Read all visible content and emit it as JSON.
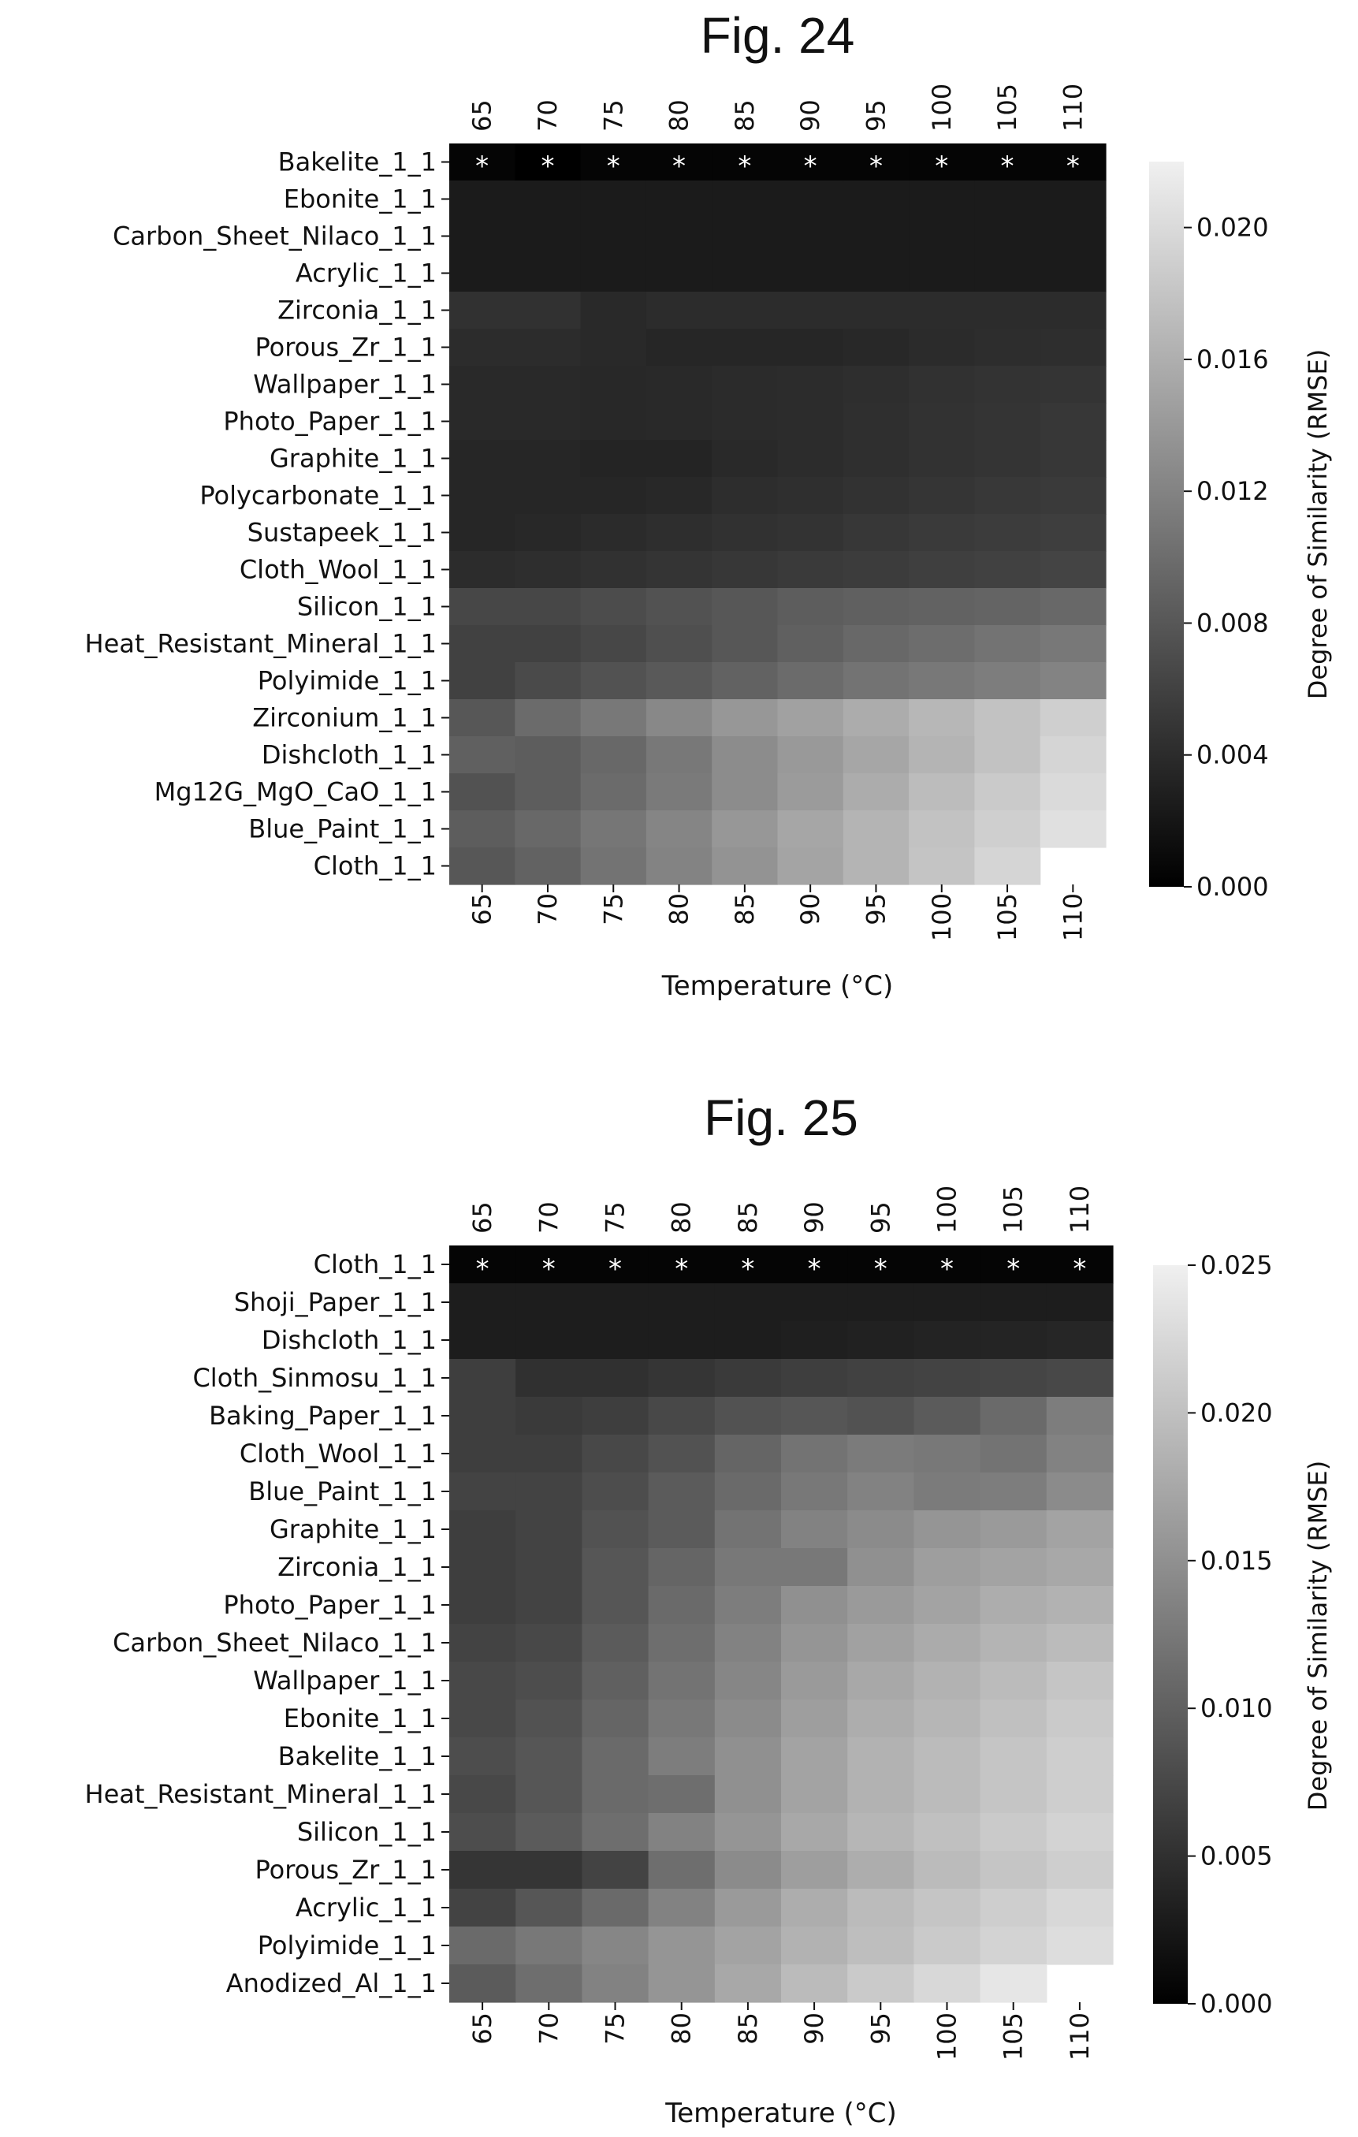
{
  "chart_data": [
    {
      "type": "heatmap",
      "title": "Fig. 24",
      "xlabel": "Temperature (°C)",
      "cbar_label": "Degree of Similarity (RMSE)",
      "cbar_ticks": [
        "0.000",
        "0.004",
        "0.008",
        "0.012",
        "0.016",
        "0.020"
      ],
      "vmin": 0.0,
      "vmax": 0.022,
      "colormap": "gray",
      "x": [
        "65",
        "70",
        "75",
        "80",
        "85",
        "90",
        "95",
        "100",
        "105",
        "110"
      ],
      "y": [
        "Bakelite_1_1",
        "Ebonite_1_1",
        "Carbon_Sheet_Nilaco_1_1",
        "Acrylic_1_1",
        "Zirconia_1_1",
        "Porous_Zr_1_1",
        "Wallpaper_1_1",
        "Photo_Paper_1_1",
        "Graphite_1_1",
        "Polycarbonate_1_1",
        "Sustapeek_1_1",
        "Cloth_Wool_1_1",
        "Silicon_1_1",
        "Heat_Resistant_Mineral_1_1",
        "Polyimide_1_1",
        "Zirconium_1_1",
        "Dishcloth_1_1",
        "Mg12G_MgO_CaO_1_1",
        "Blue_Paint_1_1",
        "Cloth_1_1"
      ],
      "marker": "*",
      "marked_row": 0,
      "values": [
        [
          0.0005,
          0.0,
          0.0005,
          0.0005,
          0.0005,
          0.0005,
          0.0005,
          0.0005,
          0.0005,
          0.0005
        ],
        [
          0.0025,
          0.0025,
          0.0025,
          0.0025,
          0.0025,
          0.0025,
          0.0025,
          0.0025,
          0.0025,
          0.0025
        ],
        [
          0.0025,
          0.0025,
          0.0025,
          0.0025,
          0.0025,
          0.0025,
          0.0025,
          0.0025,
          0.0025,
          0.0025
        ],
        [
          0.0025,
          0.0025,
          0.0025,
          0.0025,
          0.0025,
          0.0025,
          0.0025,
          0.0025,
          0.0025,
          0.0025
        ],
        [
          0.0045,
          0.0045,
          0.0038,
          0.004,
          0.004,
          0.004,
          0.004,
          0.004,
          0.004,
          0.004
        ],
        [
          0.004,
          0.004,
          0.0038,
          0.0035,
          0.0035,
          0.0035,
          0.0037,
          0.0039,
          0.0041,
          0.0042
        ],
        [
          0.0038,
          0.0038,
          0.0037,
          0.0038,
          0.0039,
          0.004,
          0.0042,
          0.0045,
          0.0047,
          0.0048
        ],
        [
          0.0038,
          0.0038,
          0.0037,
          0.0038,
          0.0039,
          0.004,
          0.0043,
          0.0046,
          0.0048,
          0.005
        ],
        [
          0.0035,
          0.0035,
          0.0033,
          0.0033,
          0.0038,
          0.004,
          0.0043,
          0.0046,
          0.0048,
          0.005
        ],
        [
          0.0035,
          0.0035,
          0.0035,
          0.0037,
          0.0041,
          0.0043,
          0.0046,
          0.0049,
          0.0051,
          0.0053
        ],
        [
          0.0035,
          0.0037,
          0.0039,
          0.0042,
          0.0045,
          0.0047,
          0.005,
          0.0053,
          0.0055,
          0.0057
        ],
        [
          0.004,
          0.0042,
          0.0045,
          0.0048,
          0.005,
          0.0053,
          0.0055,
          0.0058,
          0.006,
          0.0062
        ],
        [
          0.0065,
          0.0065,
          0.007,
          0.0075,
          0.008,
          0.0085,
          0.0088,
          0.009,
          0.0092,
          0.0095
        ],
        [
          0.006,
          0.006,
          0.0065,
          0.0072,
          0.008,
          0.0088,
          0.0095,
          0.01,
          0.0105,
          0.011
        ],
        [
          0.006,
          0.0068,
          0.0075,
          0.0082,
          0.009,
          0.0098,
          0.0105,
          0.011,
          0.0115,
          0.012
        ],
        [
          0.008,
          0.0098,
          0.011,
          0.0125,
          0.0138,
          0.0148,
          0.0158,
          0.0168,
          0.0178,
          0.019
        ],
        [
          0.0088,
          0.0085,
          0.0095,
          0.011,
          0.0128,
          0.014,
          0.0152,
          0.0165,
          0.0178,
          0.0195
        ],
        [
          0.0075,
          0.0085,
          0.0098,
          0.0112,
          0.0128,
          0.0142,
          0.0158,
          0.0172,
          0.0185,
          0.02
        ],
        [
          0.0085,
          0.0095,
          0.0108,
          0.0122,
          0.0138,
          0.0152,
          0.0165,
          0.0178,
          0.019,
          0.0205
        ],
        [
          0.008,
          0.009,
          0.0105,
          0.012,
          0.0135,
          0.015,
          0.0165,
          0.018,
          0.0195,
          null
        ]
      ]
    },
    {
      "type": "heatmap",
      "title": "Fig. 25",
      "xlabel": "Temperature (°C)",
      "cbar_label": "Degree of Similarity (RMSE)",
      "cbar_ticks": [
        "0.000",
        "0.005",
        "0.010",
        "0.015",
        "0.020",
        "0.025"
      ],
      "vmin": 0.0,
      "vmax": 0.025,
      "colormap": "gray",
      "x": [
        "65",
        "70",
        "75",
        "80",
        "85",
        "90",
        "95",
        "100",
        "105",
        "110"
      ],
      "y": [
        "Cloth_1_1",
        "Shoji_Paper_1_1",
        "Dishcloth_1_1",
        "Cloth_Sinmosu_1_1",
        "Baking_Paper_1_1",
        "Cloth_Wool_1_1",
        "Blue_Paint_1_1",
        "Graphite_1_1",
        "Zirconia_1_1",
        "Photo_Paper_1_1",
        "Carbon_Sheet_Nilaco_1_1",
        "Wallpaper_1_1",
        "Ebonite_1_1",
        "Bakelite_1_1",
        "Heat_Resistant_Mineral_1_1",
        "Silicon_1_1",
        "Porous_Zr_1_1",
        "Acrylic_1_1",
        "Polyimide_1_1",
        "Anodized_Al_1_1"
      ],
      "marker": "*",
      "marked_row": 0,
      "values": [
        [
          0.0005,
          0.0005,
          0.0005,
          0.0005,
          0.0005,
          0.0005,
          0.0005,
          0.0005,
          0.0005,
          0.0005
        ],
        [
          0.003,
          0.003,
          0.003,
          0.003,
          0.003,
          0.003,
          0.003,
          0.003,
          0.003,
          0.003
        ],
        [
          0.003,
          0.003,
          0.003,
          0.003,
          0.003,
          0.0032,
          0.0034,
          0.0036,
          0.0038,
          0.004
        ],
        [
          0.0065,
          0.005,
          0.005,
          0.0055,
          0.006,
          0.0065,
          0.0068,
          0.007,
          0.0072,
          0.0075
        ],
        [
          0.0065,
          0.006,
          0.0065,
          0.0075,
          0.0085,
          0.009,
          0.0085,
          0.0095,
          0.011,
          0.013
        ],
        [
          0.0065,
          0.0065,
          0.0075,
          0.0085,
          0.0105,
          0.012,
          0.0128,
          0.0125,
          0.012,
          0.0135
        ],
        [
          0.007,
          0.007,
          0.008,
          0.0095,
          0.011,
          0.0125,
          0.0135,
          0.0128,
          0.013,
          0.0145
        ],
        [
          0.0065,
          0.007,
          0.0085,
          0.0095,
          0.012,
          0.0135,
          0.0145,
          0.0155,
          0.016,
          0.017
        ],
        [
          0.0065,
          0.007,
          0.009,
          0.0105,
          0.0125,
          0.0125,
          0.015,
          0.0165,
          0.017,
          0.0175
        ],
        [
          0.0065,
          0.007,
          0.009,
          0.011,
          0.013,
          0.015,
          0.016,
          0.017,
          0.018,
          0.0185
        ],
        [
          0.007,
          0.0075,
          0.0095,
          0.0115,
          0.0135,
          0.0155,
          0.0168,
          0.0178,
          0.0188,
          0.0195
        ],
        [
          0.0075,
          0.008,
          0.01,
          0.012,
          0.014,
          0.016,
          0.0175,
          0.0185,
          0.0195,
          0.0205
        ],
        [
          0.0075,
          0.0085,
          0.0105,
          0.0125,
          0.0145,
          0.0165,
          0.018,
          0.019,
          0.02,
          0.021
        ],
        [
          0.008,
          0.009,
          0.011,
          0.013,
          0.015,
          0.017,
          0.0185,
          0.0195,
          0.0205,
          0.0215
        ],
        [
          0.0075,
          0.009,
          0.011,
          0.0115,
          0.015,
          0.017,
          0.0185,
          0.0195,
          0.0205,
          0.0215
        ],
        [
          0.008,
          0.0095,
          0.0115,
          0.0135,
          0.0155,
          0.0175,
          0.019,
          0.02,
          0.021,
          0.022
        ],
        [
          0.0055,
          0.0055,
          0.007,
          0.0115,
          0.0145,
          0.0165,
          0.018,
          0.0195,
          0.0205,
          0.0215
        ],
        [
          0.007,
          0.009,
          0.011,
          0.0135,
          0.016,
          0.018,
          0.0195,
          0.0205,
          0.0215,
          0.0225
        ],
        [
          0.011,
          0.0125,
          0.014,
          0.0155,
          0.017,
          0.0185,
          0.0198,
          0.021,
          0.022,
          0.023
        ],
        [
          0.0095,
          0.0115,
          0.0135,
          0.0155,
          0.0175,
          0.0195,
          0.021,
          0.0225,
          0.024,
          null
        ]
      ]
    }
  ]
}
